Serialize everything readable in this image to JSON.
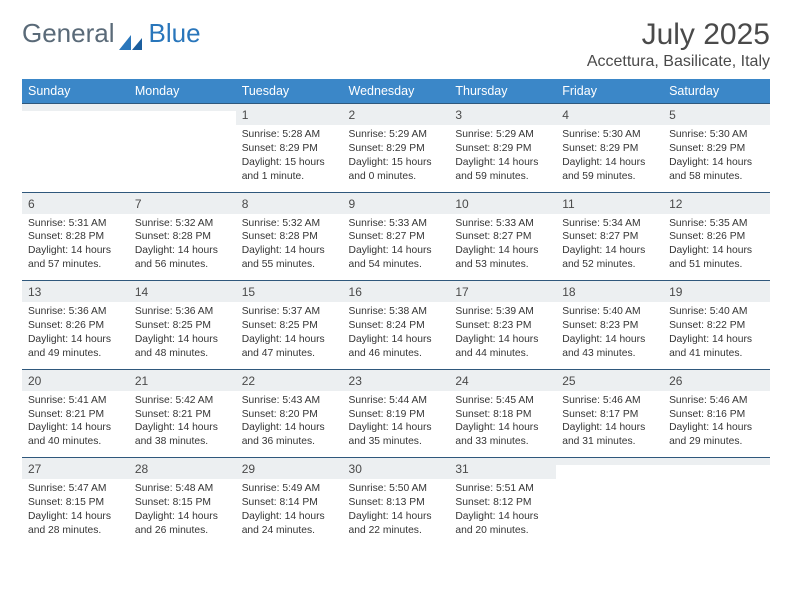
{
  "brand": {
    "part1": "General",
    "part2": "Blue"
  },
  "title": "July 2025",
  "location": "Accettura, Basilicate, Italy",
  "colors": {
    "header_bg": "#3b87c8",
    "header_fg": "#ffffff",
    "daynum_bg": "#eceff1",
    "rule": "#2f587c",
    "text": "#353535",
    "brand_gray": "#5a6a78",
    "brand_blue": "#2976bb"
  },
  "dow": [
    "Sunday",
    "Monday",
    "Tuesday",
    "Wednesday",
    "Thursday",
    "Friday",
    "Saturday"
  ],
  "weeks": [
    [
      {
        "n": "",
        "l1": "",
        "l2": "",
        "l3": "",
        "l4": ""
      },
      {
        "n": "",
        "l1": "",
        "l2": "",
        "l3": "",
        "l4": ""
      },
      {
        "n": "1",
        "l1": "Sunrise: 5:28 AM",
        "l2": "Sunset: 8:29 PM",
        "l3": "Daylight: 15 hours",
        "l4": "and 1 minute."
      },
      {
        "n": "2",
        "l1": "Sunrise: 5:29 AM",
        "l2": "Sunset: 8:29 PM",
        "l3": "Daylight: 15 hours",
        "l4": "and 0 minutes."
      },
      {
        "n": "3",
        "l1": "Sunrise: 5:29 AM",
        "l2": "Sunset: 8:29 PM",
        "l3": "Daylight: 14 hours",
        "l4": "and 59 minutes."
      },
      {
        "n": "4",
        "l1": "Sunrise: 5:30 AM",
        "l2": "Sunset: 8:29 PM",
        "l3": "Daylight: 14 hours",
        "l4": "and 59 minutes."
      },
      {
        "n": "5",
        "l1": "Sunrise: 5:30 AM",
        "l2": "Sunset: 8:29 PM",
        "l3": "Daylight: 14 hours",
        "l4": "and 58 minutes."
      }
    ],
    [
      {
        "n": "6",
        "l1": "Sunrise: 5:31 AM",
        "l2": "Sunset: 8:28 PM",
        "l3": "Daylight: 14 hours",
        "l4": "and 57 minutes."
      },
      {
        "n": "7",
        "l1": "Sunrise: 5:32 AM",
        "l2": "Sunset: 8:28 PM",
        "l3": "Daylight: 14 hours",
        "l4": "and 56 minutes."
      },
      {
        "n": "8",
        "l1": "Sunrise: 5:32 AM",
        "l2": "Sunset: 8:28 PM",
        "l3": "Daylight: 14 hours",
        "l4": "and 55 minutes."
      },
      {
        "n": "9",
        "l1": "Sunrise: 5:33 AM",
        "l2": "Sunset: 8:27 PM",
        "l3": "Daylight: 14 hours",
        "l4": "and 54 minutes."
      },
      {
        "n": "10",
        "l1": "Sunrise: 5:33 AM",
        "l2": "Sunset: 8:27 PM",
        "l3": "Daylight: 14 hours",
        "l4": "and 53 minutes."
      },
      {
        "n": "11",
        "l1": "Sunrise: 5:34 AM",
        "l2": "Sunset: 8:27 PM",
        "l3": "Daylight: 14 hours",
        "l4": "and 52 minutes."
      },
      {
        "n": "12",
        "l1": "Sunrise: 5:35 AM",
        "l2": "Sunset: 8:26 PM",
        "l3": "Daylight: 14 hours",
        "l4": "and 51 minutes."
      }
    ],
    [
      {
        "n": "13",
        "l1": "Sunrise: 5:36 AM",
        "l2": "Sunset: 8:26 PM",
        "l3": "Daylight: 14 hours",
        "l4": "and 49 minutes."
      },
      {
        "n": "14",
        "l1": "Sunrise: 5:36 AM",
        "l2": "Sunset: 8:25 PM",
        "l3": "Daylight: 14 hours",
        "l4": "and 48 minutes."
      },
      {
        "n": "15",
        "l1": "Sunrise: 5:37 AM",
        "l2": "Sunset: 8:25 PM",
        "l3": "Daylight: 14 hours",
        "l4": "and 47 minutes."
      },
      {
        "n": "16",
        "l1": "Sunrise: 5:38 AM",
        "l2": "Sunset: 8:24 PM",
        "l3": "Daylight: 14 hours",
        "l4": "and 46 minutes."
      },
      {
        "n": "17",
        "l1": "Sunrise: 5:39 AM",
        "l2": "Sunset: 8:23 PM",
        "l3": "Daylight: 14 hours",
        "l4": "and 44 minutes."
      },
      {
        "n": "18",
        "l1": "Sunrise: 5:40 AM",
        "l2": "Sunset: 8:23 PM",
        "l3": "Daylight: 14 hours",
        "l4": "and 43 minutes."
      },
      {
        "n": "19",
        "l1": "Sunrise: 5:40 AM",
        "l2": "Sunset: 8:22 PM",
        "l3": "Daylight: 14 hours",
        "l4": "and 41 minutes."
      }
    ],
    [
      {
        "n": "20",
        "l1": "Sunrise: 5:41 AM",
        "l2": "Sunset: 8:21 PM",
        "l3": "Daylight: 14 hours",
        "l4": "and 40 minutes."
      },
      {
        "n": "21",
        "l1": "Sunrise: 5:42 AM",
        "l2": "Sunset: 8:21 PM",
        "l3": "Daylight: 14 hours",
        "l4": "and 38 minutes."
      },
      {
        "n": "22",
        "l1": "Sunrise: 5:43 AM",
        "l2": "Sunset: 8:20 PM",
        "l3": "Daylight: 14 hours",
        "l4": "and 36 minutes."
      },
      {
        "n": "23",
        "l1": "Sunrise: 5:44 AM",
        "l2": "Sunset: 8:19 PM",
        "l3": "Daylight: 14 hours",
        "l4": "and 35 minutes."
      },
      {
        "n": "24",
        "l1": "Sunrise: 5:45 AM",
        "l2": "Sunset: 8:18 PM",
        "l3": "Daylight: 14 hours",
        "l4": "and 33 minutes."
      },
      {
        "n": "25",
        "l1": "Sunrise: 5:46 AM",
        "l2": "Sunset: 8:17 PM",
        "l3": "Daylight: 14 hours",
        "l4": "and 31 minutes."
      },
      {
        "n": "26",
        "l1": "Sunrise: 5:46 AM",
        "l2": "Sunset: 8:16 PM",
        "l3": "Daylight: 14 hours",
        "l4": "and 29 minutes."
      }
    ],
    [
      {
        "n": "27",
        "l1": "Sunrise: 5:47 AM",
        "l2": "Sunset: 8:15 PM",
        "l3": "Daylight: 14 hours",
        "l4": "and 28 minutes."
      },
      {
        "n": "28",
        "l1": "Sunrise: 5:48 AM",
        "l2": "Sunset: 8:15 PM",
        "l3": "Daylight: 14 hours",
        "l4": "and 26 minutes."
      },
      {
        "n": "29",
        "l1": "Sunrise: 5:49 AM",
        "l2": "Sunset: 8:14 PM",
        "l3": "Daylight: 14 hours",
        "l4": "and 24 minutes."
      },
      {
        "n": "30",
        "l1": "Sunrise: 5:50 AM",
        "l2": "Sunset: 8:13 PM",
        "l3": "Daylight: 14 hours",
        "l4": "and 22 minutes."
      },
      {
        "n": "31",
        "l1": "Sunrise: 5:51 AM",
        "l2": "Sunset: 8:12 PM",
        "l3": "Daylight: 14 hours",
        "l4": "and 20 minutes."
      },
      {
        "n": "",
        "l1": "",
        "l2": "",
        "l3": "",
        "l4": ""
      },
      {
        "n": "",
        "l1": "",
        "l2": "",
        "l3": "",
        "l4": ""
      }
    ]
  ]
}
